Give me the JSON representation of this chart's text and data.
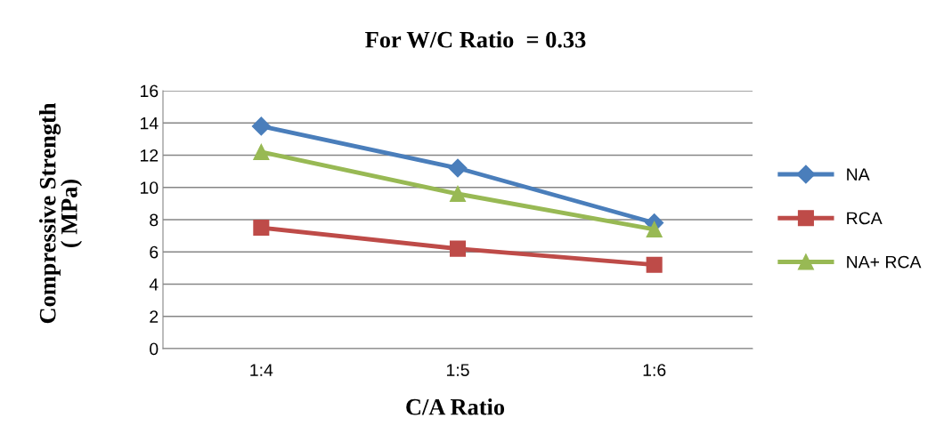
{
  "chart_data": {
    "type": "line",
    "title": "For W/C Ratio  = 0.33",
    "xlabel": "C/A Ratio",
    "ylabel": "Compressive Strength\n( MPa)",
    "categories": [
      "1:4",
      "1:5",
      "1:6"
    ],
    "series": [
      {
        "name": "NA",
        "color": "#4a7ebb",
        "marker": "diamond",
        "values": [
          13.8,
          11.2,
          7.8
        ]
      },
      {
        "name": "RCA",
        "color": "#be4b48",
        "marker": "square",
        "values": [
          7.5,
          6.2,
          5.2
        ]
      },
      {
        "name": "NA+ RCA",
        "color": "#98b954",
        "marker": "triangle",
        "values": [
          12.2,
          9.6,
          7.4
        ]
      }
    ],
    "ylim": [
      0,
      16
    ],
    "yticks": [
      0,
      2,
      4,
      6,
      8,
      10,
      12,
      14,
      16
    ],
    "grid": "y",
    "legend": "right",
    "line_style": "solid"
  }
}
